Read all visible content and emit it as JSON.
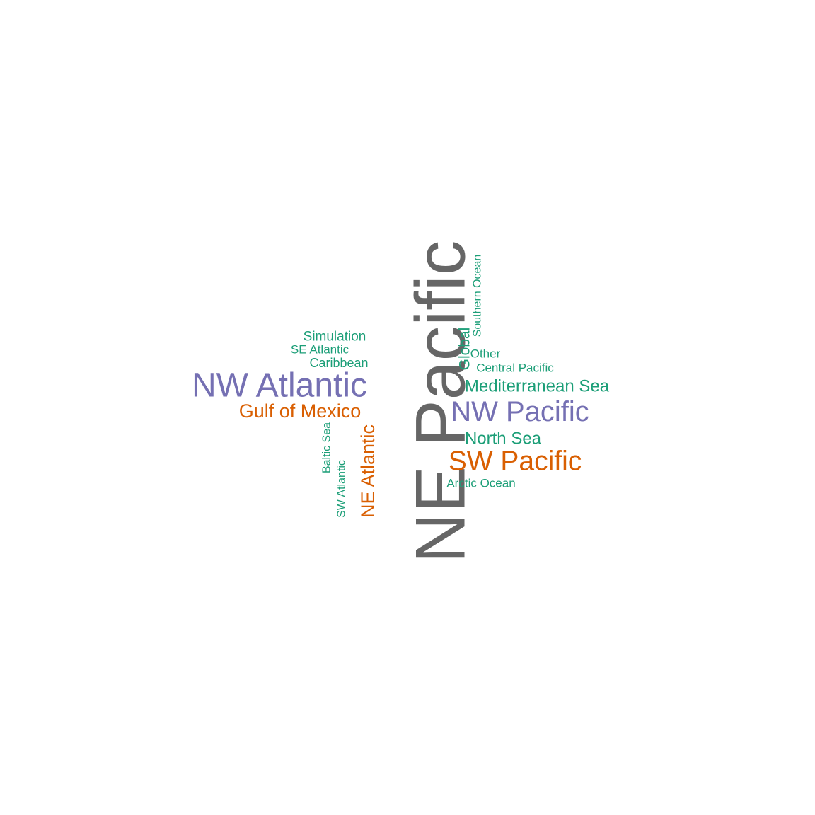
{
  "palette": {
    "gray": "#666666",
    "purple": "#7570b3",
    "orange": "#d95f02",
    "green": "#1b9e77"
  },
  "words": [
    {
      "id": "ne-pacific",
      "text": "NE Pacific",
      "color_key": "gray",
      "rotated": true
    },
    {
      "id": "nw-atlantic",
      "text": "NW Atlantic",
      "color_key": "purple",
      "rotated": false
    },
    {
      "id": "nw-pacific",
      "text": "NW Pacific",
      "color_key": "purple",
      "rotated": false
    },
    {
      "id": "sw-pacific",
      "text": "SW Pacific",
      "color_key": "orange",
      "rotated": false
    },
    {
      "id": "gulf-of-mexico",
      "text": "Gulf of Mexico",
      "color_key": "orange",
      "rotated": false
    },
    {
      "id": "ne-atlantic",
      "text": "NE Atlantic",
      "color_key": "orange",
      "rotated": true
    },
    {
      "id": "mediterranean-sea",
      "text": "Mediterranean Sea",
      "color_key": "green",
      "rotated": false
    },
    {
      "id": "north-sea",
      "text": "North Sea",
      "color_key": "green",
      "rotated": false
    },
    {
      "id": "global",
      "text": "Global",
      "color_key": "green",
      "rotated": true
    },
    {
      "id": "simulation",
      "text": "Simulation",
      "color_key": "green",
      "rotated": false
    },
    {
      "id": "caribbean",
      "text": "Caribbean",
      "color_key": "green",
      "rotated": false
    },
    {
      "id": "se-atlantic",
      "text": "SE Atlantic",
      "color_key": "green",
      "rotated": false
    },
    {
      "id": "other",
      "text": "Other",
      "color_key": "green",
      "rotated": false
    },
    {
      "id": "central-pacific",
      "text": "Central Pacific",
      "color_key": "green",
      "rotated": false
    },
    {
      "id": "arctic-ocean",
      "text": "Arctic Ocean",
      "color_key": "green",
      "rotated": false
    },
    {
      "id": "southern-ocean",
      "text": "Southern Ocean",
      "color_key": "green",
      "rotated": true
    },
    {
      "id": "baltic-sea",
      "text": "Baltic Sea",
      "color_key": "green",
      "rotated": true
    },
    {
      "id": "sw-atlantic",
      "text": "SW Atlantic",
      "color_key": "green",
      "rotated": true
    }
  ]
}
